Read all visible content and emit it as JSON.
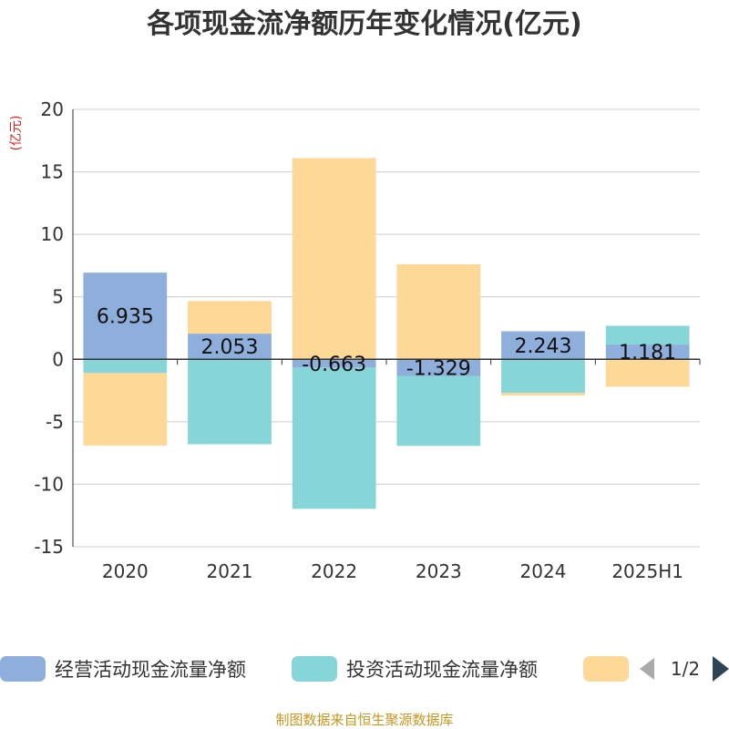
{
  "colors": {
    "operating": "#8eaedb",
    "investing": "#86d5d9",
    "financing": "#fed897",
    "grid": "#cccccc",
    "axis": "#333333",
    "unit": "#e01f1f",
    "source": "#c8961e",
    "page_active": "#2f4554",
    "page_inactive": "#aaaaaa"
  },
  "legend": {
    "page": "1/2",
    "prev_icon": "triangle-left",
    "next_icon": "triangle-right"
  },
  "footer": {
    "source": "制图数据来自恒生聚源数据库"
  },
  "chart_data": {
    "type": "bar",
    "stacked": true,
    "title": "各项现金流净额历年变化情况(亿元)",
    "unit_label": "(亿元)",
    "categories": [
      "2020",
      "2021",
      "2022",
      "2023",
      "2024",
      "2025H1"
    ],
    "ylim": [
      -15,
      20
    ],
    "yticks": [
      -15,
      -10,
      -5,
      0,
      5,
      10,
      15,
      20
    ],
    "grid": true,
    "legend_position": "bottom",
    "series": [
      {
        "name": "经营活动现金流量净额",
        "color_key": "operating",
        "values": [
          6.935,
          2.053,
          -0.663,
          -1.329,
          2.243,
          1.181
        ],
        "labels": [
          "6.935",
          "2.053",
          "-0.663",
          "-1.329",
          "2.243",
          "1.181"
        ]
      },
      {
        "name": "投资活动现金流量净额",
        "color_key": "investing",
        "values": [
          -1.1,
          -6.8,
          -11.3,
          -5.6,
          -2.7,
          1.5
        ]
      },
      {
        "name": "",
        "color_key": "financing",
        "values": [
          -5.8,
          2.6,
          16.1,
          7.6,
          -0.2,
          -2.2
        ]
      }
    ]
  }
}
